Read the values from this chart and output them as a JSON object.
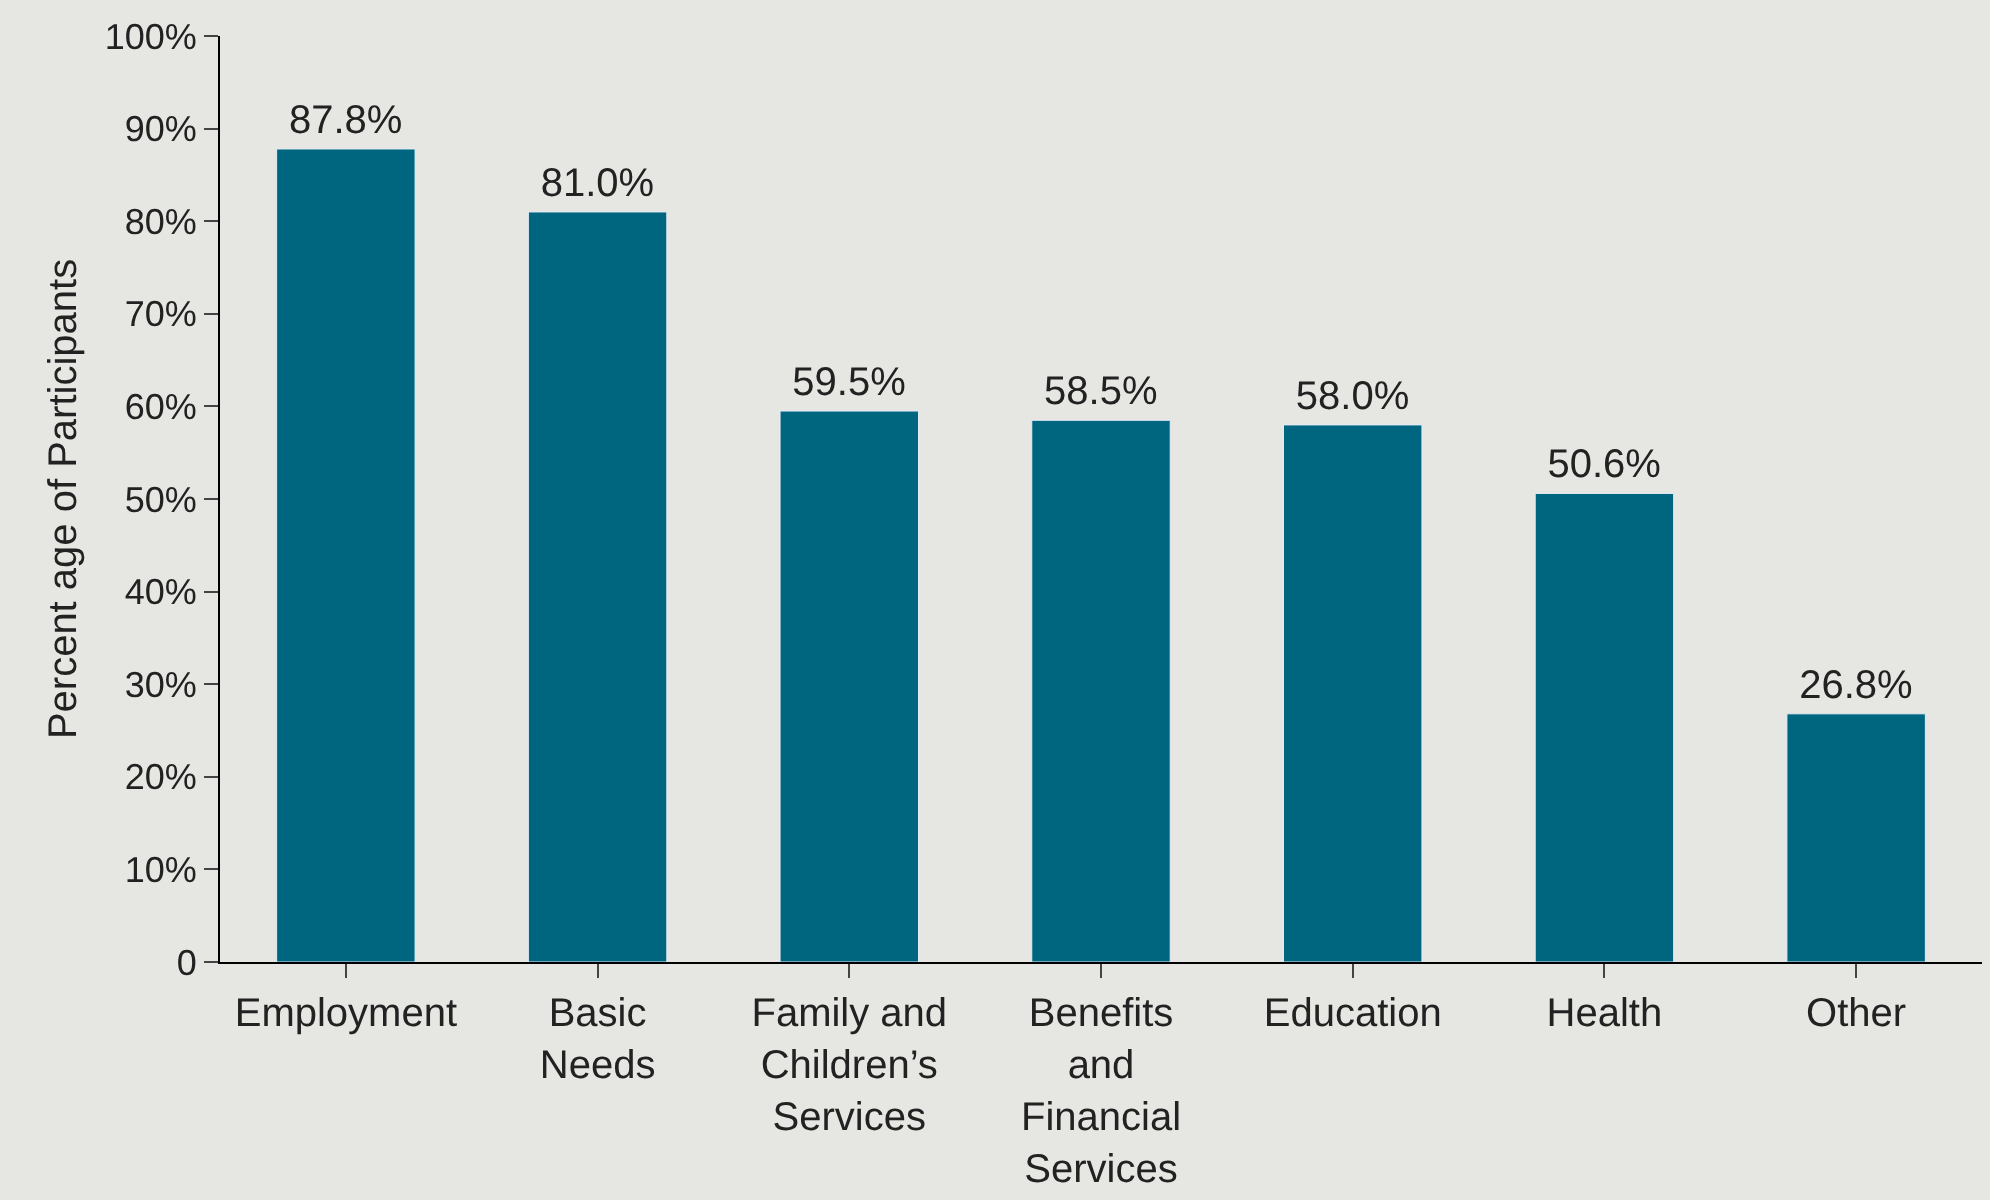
{
  "chart_data": {
    "type": "bar",
    "ylabel": "Percent age of Participants",
    "categories": [
      "Employment",
      "Basic Needs",
      "Family and Children’s Services",
      "Benefits and Financial Services",
      "Education",
      "Health",
      "Other"
    ],
    "values": [
      87.8,
      81.0,
      59.5,
      58.5,
      58.0,
      50.6,
      26.8
    ],
    "value_labels": [
      "87.8%",
      "81.0%",
      "59.5%",
      "58.5%",
      "58.0%",
      "50.6%",
      "26.8%"
    ],
    "color": "#006680",
    "ylim": [
      0,
      100
    ],
    "yticks": [
      {
        "value": 0,
        "label": "0"
      },
      {
        "value": 10,
        "label": "10%"
      },
      {
        "value": 20,
        "label": "20%"
      },
      {
        "value": 30,
        "label": "30%"
      },
      {
        "value": 40,
        "label": "40%"
      },
      {
        "value": 50,
        "label": "50%"
      },
      {
        "value": 60,
        "label": "60%"
      },
      {
        "value": 70,
        "label": "70%"
      },
      {
        "value": 80,
        "label": "80%"
      },
      {
        "value": 90,
        "label": "90%"
      },
      {
        "value": 100,
        "label": "100%"
      }
    ],
    "grid": false,
    "legend": false
  }
}
